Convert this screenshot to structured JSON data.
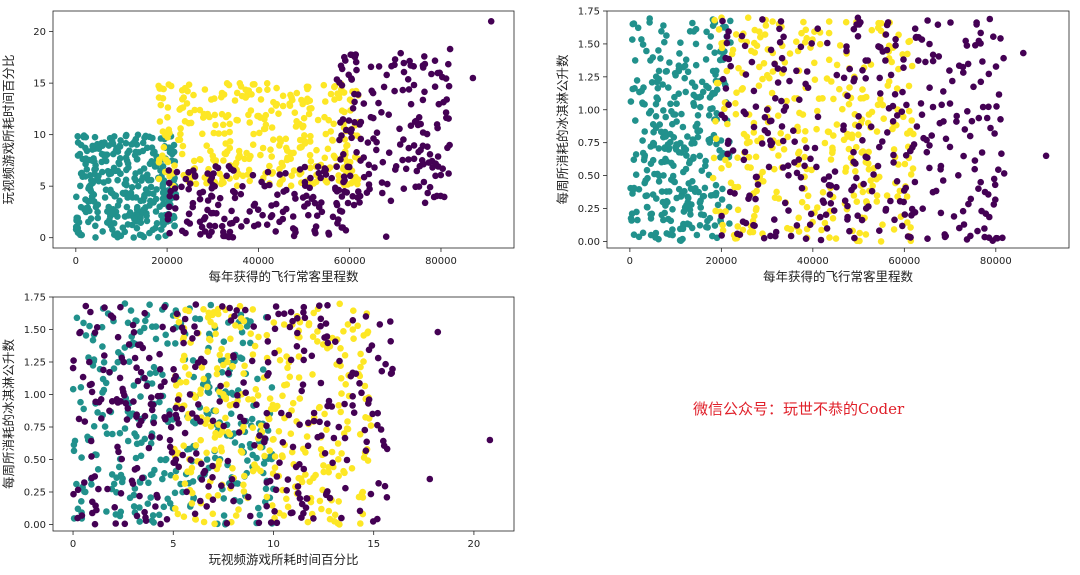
{
  "watermark": "微信公众号：玩世不恭的Coder",
  "colors": {
    "class1": "#440154",
    "class2": "#21918c",
    "class3": "#fde725",
    "axes": "#222222"
  },
  "chart_data": [
    {
      "id": "p1",
      "type": "scatter",
      "xlabel": "每年获得的飞行常客里程数",
      "ylabel": "玩视频游戏所耗时间百分比",
      "xlim": [
        -5000,
        96000
      ],
      "ylim": [
        -1,
        22
      ],
      "xticks": [
        0,
        20000,
        40000,
        60000,
        80000
      ],
      "yticks": [
        0,
        5,
        10,
        15,
        20
      ],
      "grid": false,
      "series": [
        {
          "class": "class2",
          "x": [
            [
              0,
              22000
            ]
          ],
          "y": [
            [
              0,
              10
            ]
          ],
          "points": 330
        },
        {
          "class": "class3",
          "x": [
            [
              18000,
              62000
            ]
          ],
          "y": [
            [
              5,
              15
            ]
          ],
          "points": 330
        },
        {
          "class": "class1",
          "x": [
            [
              20000,
              60000
            ],
            [
              57000,
              82000
            ]
          ],
          "y": [
            [
              0,
              7
            ],
            [
              3,
              18
            ]
          ],
          "points": 340
        },
        {
          "class": "class1",
          "outliers": [
            [
              91000,
              21
            ],
            [
              87000,
              15.5
            ],
            [
              82000,
              18.3
            ],
            [
              68000,
              0.1
            ]
          ]
        }
      ]
    },
    {
      "id": "p2",
      "type": "scatter",
      "xlabel": "每年获得的飞行常客里程数",
      "ylabel": "每周所消耗的冰淇淋公升数",
      "xlim": [
        -5000,
        96000
      ],
      "ylim": [
        -0.05,
        1.75
      ],
      "xticks": [
        0,
        20000,
        40000,
        60000,
        80000
      ],
      "yticks": [
        0.0,
        0.25,
        0.5,
        0.75,
        1.0,
        1.25,
        1.5,
        1.75
      ],
      "grid": false,
      "series": [
        {
          "class": "class2",
          "x": [
            [
              0,
              22000
            ]
          ],
          "y": [
            [
              0,
              1.7
            ]
          ],
          "points": 330
        },
        {
          "class": "class3",
          "x": [
            [
              18000,
              62000
            ]
          ],
          "y": [
            [
              0,
              1.7
            ]
          ],
          "points": 330
        },
        {
          "class": "class1",
          "x": [
            [
              20000,
              82000
            ]
          ],
          "y": [
            [
              0,
              1.7
            ]
          ],
          "points": 340
        },
        {
          "class": "class1",
          "outliers": [
            [
              91000,
              0.65
            ],
            [
              86000,
              1.43
            ]
          ]
        }
      ]
    },
    {
      "id": "p3",
      "type": "scatter",
      "xlabel": "玩视频游戏所耗时间百分比",
      "ylabel": "每周所消耗的冰淇淋公升数",
      "xlim": [
        -1,
        22
      ],
      "ylim": [
        -0.05,
        1.75
      ],
      "xticks": [
        0,
        5,
        10,
        15,
        20
      ],
      "yticks": [
        0.0,
        0.25,
        0.5,
        0.75,
        1.0,
        1.25,
        1.5,
        1.75
      ],
      "grid": false,
      "series": [
        {
          "class": "class2",
          "x": [
            [
              0,
              10
            ]
          ],
          "y": [
            [
              0,
              1.7
            ]
          ],
          "points": 330
        },
        {
          "class": "class3",
          "x": [
            [
              5,
              15
            ]
          ],
          "y": [
            [
              0,
              1.7
            ]
          ],
          "points": 330
        },
        {
          "class": "class1",
          "x": [
            [
              0,
              16
            ]
          ],
          "y": [
            [
              0,
              1.7
            ]
          ],
          "points": 340
        },
        {
          "class": "class1",
          "outliers": [
            [
              20.8,
              0.65
            ],
            [
              18.2,
              1.48
            ],
            [
              17.8,
              0.35
            ]
          ]
        }
      ]
    }
  ]
}
